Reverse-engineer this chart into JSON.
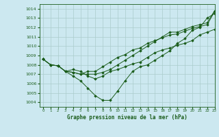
{
  "background_color": "#cce8f0",
  "grid_color": "#aacccc",
  "line_color": "#1a5c1a",
  "title": "Graphe pression niveau de la mer (hPa)",
  "xlim": [
    -0.5,
    23
  ],
  "ylim": [
    1003.5,
    1014.5
  ],
  "yticks": [
    1004,
    1005,
    1006,
    1007,
    1008,
    1009,
    1010,
    1011,
    1012,
    1013,
    1014
  ],
  "xticks": [
    0,
    1,
    2,
    3,
    4,
    5,
    6,
    7,
    8,
    9,
    10,
    11,
    12,
    13,
    14,
    15,
    16,
    17,
    18,
    19,
    20,
    21,
    22,
    23
  ],
  "series1": [
    1008.6,
    1008.0,
    1007.9,
    1007.3,
    1007.5,
    1007.3,
    1006.8,
    1006.5,
    1006.8,
    1007.3,
    1007.5,
    1007.8,
    1008.1,
    1008.3,
    1008.8,
    1009.3,
    1009.6,
    1009.8,
    1010.1,
    1010.3,
    1010.6,
    1011.2,
    1011.5,
    1011.8
  ],
  "series2": [
    1008.6,
    1008.0,
    1007.9,
    1007.3,
    1006.8,
    1006.3,
    1005.5,
    1004.7,
    1004.2,
    1004.2,
    1005.2,
    1006.3,
    1007.3,
    1007.8,
    1008.0,
    1008.5,
    1009.0,
    1009.5,
    1010.3,
    1010.8,
    1011.7,
    1012.0,
    1013.0,
    1013.5
  ],
  "series3": [
    1008.6,
    1008.0,
    1007.9,
    1007.3,
    1007.2,
    1007.0,
    1007.3,
    1007.3,
    1007.8,
    1008.3,
    1008.8,
    1009.1,
    1009.6,
    1009.8,
    1010.3,
    1010.6,
    1010.9,
    1011.2,
    1011.3,
    1011.6,
    1011.9,
    1012.1,
    1012.3,
    1013.7
  ],
  "series4": [
    1008.6,
    1008.0,
    1007.9,
    1007.3,
    1007.2,
    1007.0,
    1007.0,
    1007.0,
    1007.2,
    1007.5,
    1008.0,
    1008.5,
    1009.0,
    1009.5,
    1010.0,
    1010.5,
    1011.0,
    1011.5,
    1011.5,
    1011.8,
    1012.1,
    1012.3,
    1012.5,
    1013.8
  ]
}
